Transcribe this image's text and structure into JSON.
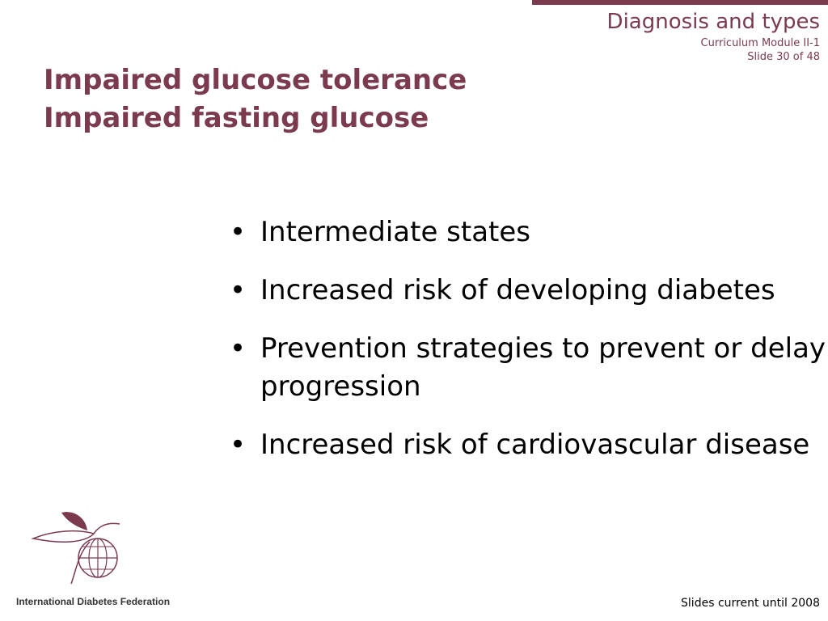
{
  "header": {
    "section": "Diagnosis and types",
    "module": "Curriculum Module II-1",
    "slide": "Slide 30 of 48"
  },
  "title": {
    "lines": [
      "Impaired glucose tolerance",
      "Impaired fasting glucose"
    ]
  },
  "bullets": [
    "Intermediate states",
    "Increased risk of developing diabetes",
    "Prevention strategies to prevent or delay progression",
    "Increased risk of cardiovascular disease"
  ],
  "logo": {
    "text": "International Diabetes Federation"
  },
  "footer": {
    "note": "Slides current until 2008"
  }
}
